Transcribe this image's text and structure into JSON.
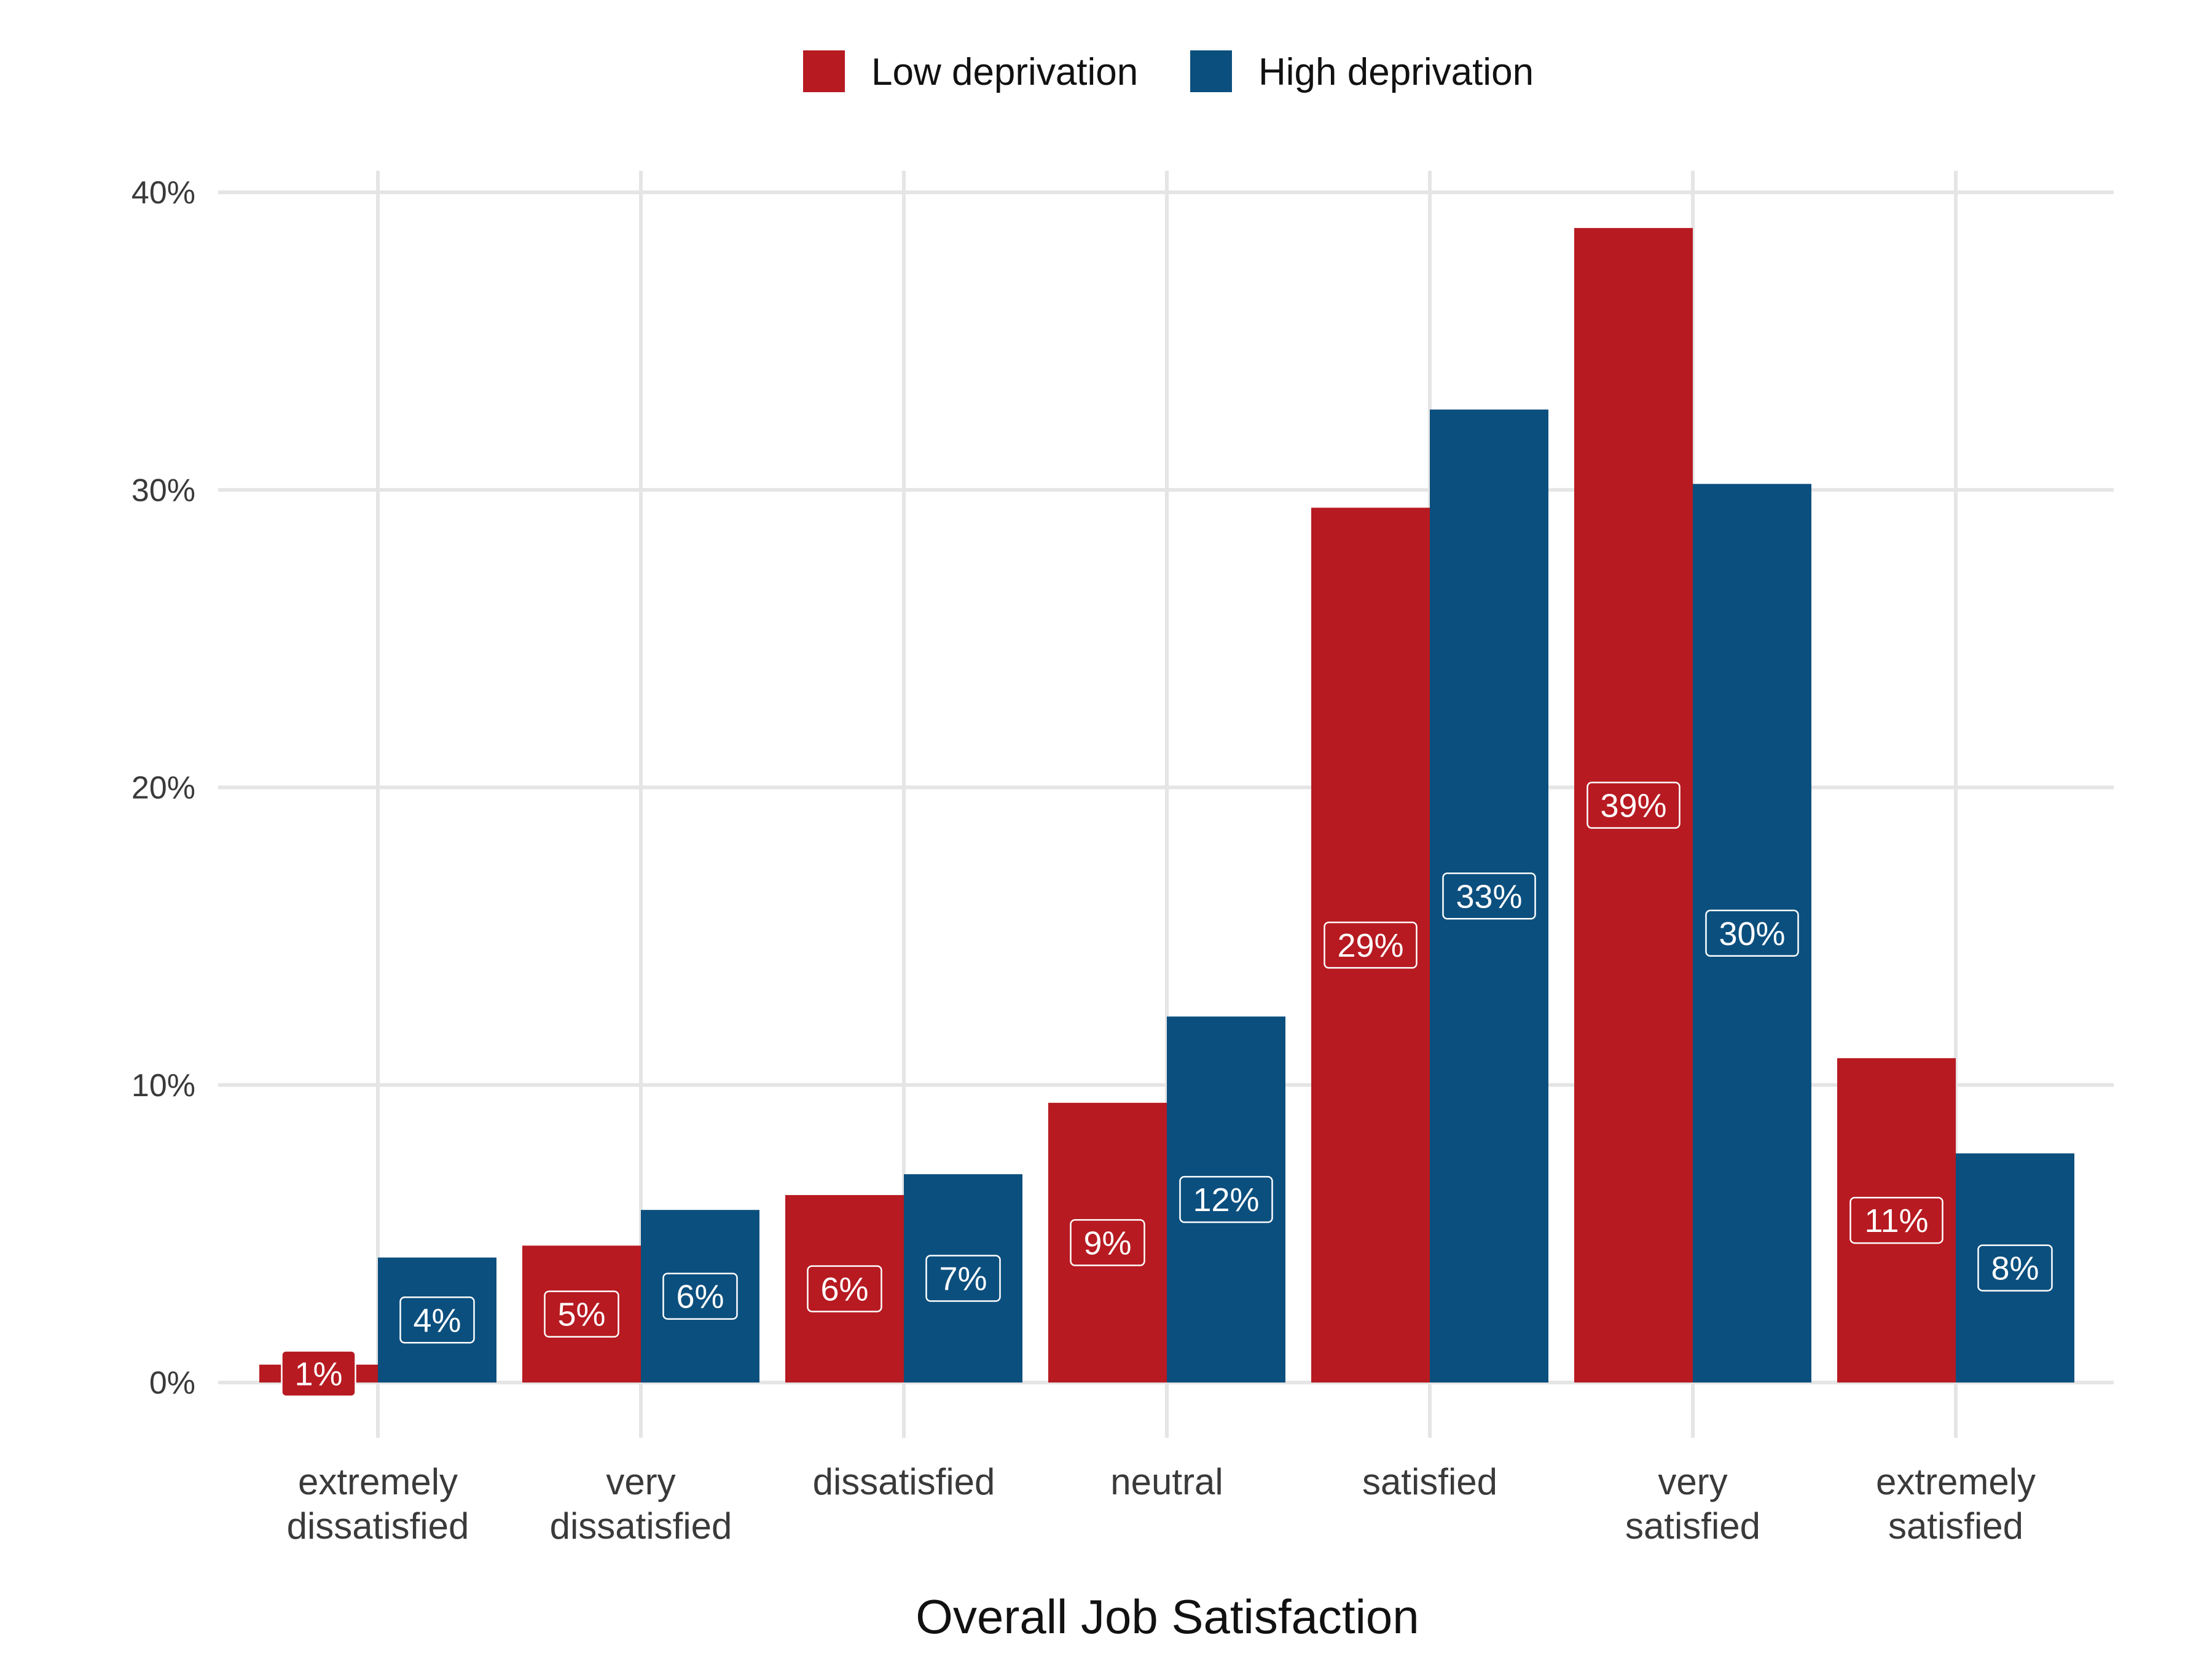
{
  "chart_data": {
    "type": "bar",
    "title": "",
    "xlabel": "Overall Job Satisfaction",
    "ylabel": "",
    "categories": [
      [
        "extremely",
        "dissatisfied"
      ],
      [
        "very",
        "dissatisfied"
      ],
      [
        "dissatisfied"
      ],
      [
        "neutral"
      ],
      [
        "satisfied"
      ],
      [
        "very",
        "satisfied"
      ],
      [
        "extremely",
        "satisfied"
      ]
    ],
    "series": [
      {
        "name": "Low deprivation",
        "color": "#b71a21",
        "values": [
          0.6,
          4.6,
          6.3,
          9.4,
          29.4,
          38.8,
          10.9
        ],
        "labels": [
          "1%",
          "5%",
          "6%",
          "9%",
          "29%",
          "39%",
          "11%"
        ]
      },
      {
        "name": "High deprivation",
        "color": "#0b4f7e",
        "values": [
          4.2,
          5.8,
          7.0,
          12.3,
          32.7,
          30.2,
          7.7
        ],
        "labels": [
          "4%",
          "6%",
          "7%",
          "12%",
          "33%",
          "30%",
          "8%"
        ]
      }
    ],
    "ylim": [
      0,
      40
    ],
    "yticks": [
      0,
      10,
      20,
      30,
      40
    ],
    "ytick_labels": [
      "0%",
      "10%",
      "20%",
      "30%",
      "40%"
    ],
    "grid": true,
    "legend_position": "top"
  }
}
